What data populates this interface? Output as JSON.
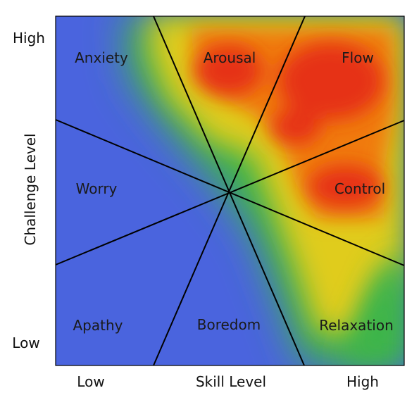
{
  "axes": {
    "y_title": "Challenge Level",
    "y_high": "High",
    "y_low": "Low",
    "x_title": "Skill Level",
    "x_low": "Low",
    "x_high": "High"
  },
  "zones": [
    {
      "id": "anxiety",
      "label": "Anxiety"
    },
    {
      "id": "arousal",
      "label": "Arousal"
    },
    {
      "id": "flow",
      "label": "Flow"
    },
    {
      "id": "worry",
      "label": "Worry"
    },
    {
      "id": "control",
      "label": "Control"
    },
    {
      "id": "apathy",
      "label": "Apathy"
    },
    {
      "id": "boredom",
      "label": "Boredom"
    },
    {
      "id": "relaxation",
      "label": "Relaxation"
    }
  ],
  "colors": {
    "low": "#4a64de",
    "mid_green": "#3db54a",
    "mid_yellow": "#e0cc1a",
    "high_orange": "#f07a10",
    "high_red": "#e63312",
    "divider": "#000000"
  }
}
